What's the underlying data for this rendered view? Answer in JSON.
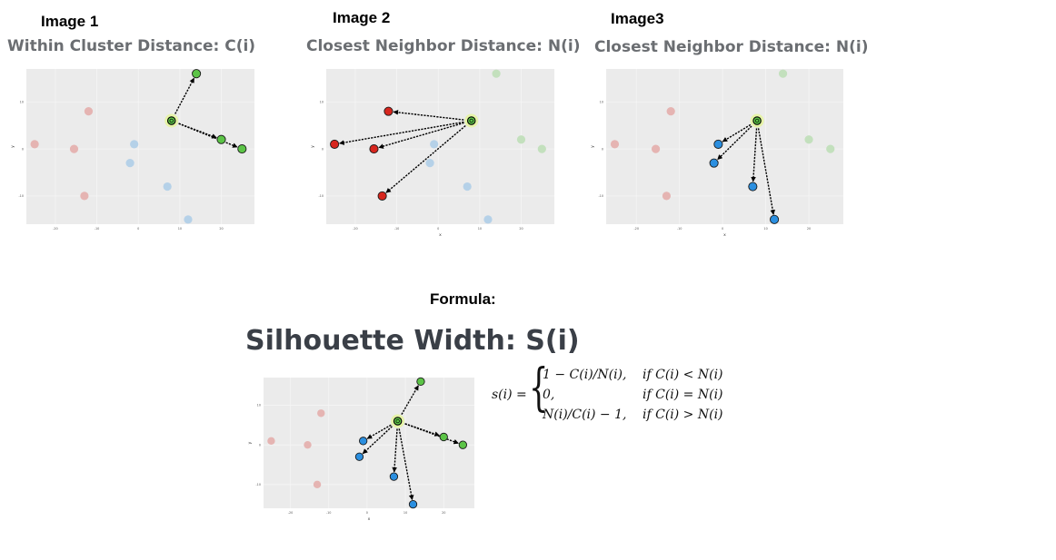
{
  "labels": {
    "image1": "Image 1",
    "image2": "Image 2",
    "image3": "Image3",
    "formula": "Formula:"
  },
  "subtitles": {
    "within": "Within Cluster Distance: C(i)",
    "neighbor2": "Closest Neighbor Distance: N(i)",
    "neighbor3": "Closest Neighbor Distance: N(i)"
  },
  "main_title": "Silhouette Width: S(i)",
  "formula": {
    "lhs": "s(i) =",
    "rows": [
      {
        "expr": "1 − C(i)/N(i),",
        "cond": "if C(i) < N(i)"
      },
      {
        "expr": "0,",
        "cond": "if C(i) = N(i)"
      },
      {
        "expr": "N(i)/C(i) − 1,",
        "cond": "if C(i) > N(i)"
      }
    ]
  },
  "colors": {
    "red": "#d7261e",
    "green": "#5cc447",
    "blue": "#2b8fe0",
    "panel": "#ebebeb",
    "focus_glow": "#e6f3a8"
  },
  "chart_data": [
    {
      "type": "scatter",
      "xlabel": "",
      "ylabel": "y",
      "x_ticks": [
        "-20",
        "-10",
        "0",
        "10",
        "20"
      ],
      "y_ticks": [
        "10",
        "0",
        "-10"
      ],
      "xlim": [
        -27,
        28
      ],
      "ylim": [
        -16,
        17
      ],
      "focus": [
        8,
        6
      ],
      "series": [
        {
          "cluster": "red",
          "points": [
            [
              -25,
              1
            ],
            [
              -15.5,
              0
            ],
            [
              -12,
              8
            ],
            [
              -13,
              -10
            ]
          ],
          "faded": true,
          "arrows": false
        },
        {
          "cluster": "blue",
          "points": [
            [
              -1,
              1
            ],
            [
              -2,
              -3
            ],
            [
              7,
              -8
            ],
            [
              12,
              -15
            ]
          ],
          "faded": true,
          "arrows": false
        },
        {
          "cluster": "green",
          "points": [
            [
              14,
              16
            ],
            [
              20,
              2
            ],
            [
              25,
              0
            ]
          ],
          "faded": false,
          "arrows": true
        }
      ]
    },
    {
      "type": "scatter",
      "xlabel": "x",
      "ylabel": "y",
      "x_ticks": [
        "-20",
        "-10",
        "0",
        "10",
        "20"
      ],
      "y_ticks": [
        "10",
        "0",
        "-10"
      ],
      "xlim": [
        -27,
        28
      ],
      "ylim": [
        -16,
        17
      ],
      "focus": [
        8,
        6
      ],
      "series": [
        {
          "cluster": "red",
          "points": [
            [
              -25,
              1
            ],
            [
              -15.5,
              0
            ],
            [
              -12,
              8
            ],
            [
              -13.5,
              -10
            ]
          ],
          "faded": false,
          "arrows": true
        },
        {
          "cluster": "blue",
          "points": [
            [
              -1,
              1
            ],
            [
              -2,
              -3
            ],
            [
              7,
              -8
            ],
            [
              12,
              -15
            ]
          ],
          "faded": true,
          "arrows": false
        },
        {
          "cluster": "green",
          "points": [
            [
              14,
              16
            ],
            [
              20,
              2
            ],
            [
              25,
              0
            ]
          ],
          "faded": true,
          "arrows": false
        }
      ]
    },
    {
      "type": "scatter",
      "xlabel": "x",
      "ylabel": "y",
      "x_ticks": [
        "-20",
        "-10",
        "0",
        "10",
        "20"
      ],
      "y_ticks": [
        "10",
        "0",
        "-10"
      ],
      "xlim": [
        -27,
        28
      ],
      "ylim": [
        -16,
        17
      ],
      "focus": [
        8,
        6
      ],
      "series": [
        {
          "cluster": "red",
          "points": [
            [
              -25,
              1
            ],
            [
              -15.5,
              0
            ],
            [
              -12,
              8
            ],
            [
              -13,
              -10
            ]
          ],
          "faded": true,
          "arrows": false
        },
        {
          "cluster": "blue",
          "points": [
            [
              -1,
              1
            ],
            [
              -2,
              -3
            ],
            [
              7,
              -8
            ],
            [
              12,
              -15
            ]
          ],
          "faded": false,
          "arrows": true
        },
        {
          "cluster": "green",
          "points": [
            [
              14,
              16
            ],
            [
              20,
              2
            ],
            [
              25,
              0
            ]
          ],
          "faded": true,
          "arrows": false
        }
      ]
    },
    {
      "type": "scatter",
      "xlabel": "x",
      "ylabel": "y",
      "x_ticks": [
        "-20",
        "-10",
        "0",
        "10",
        "20"
      ],
      "y_ticks": [
        "10",
        "0",
        "-10"
      ],
      "xlim": [
        -27,
        28
      ],
      "ylim": [
        -16,
        17
      ],
      "focus": [
        8,
        6
      ],
      "series": [
        {
          "cluster": "red",
          "points": [
            [
              -25,
              1
            ],
            [
              -15.5,
              0
            ],
            [
              -12,
              8
            ],
            [
              -13,
              -10
            ]
          ],
          "faded": true,
          "arrows": false
        },
        {
          "cluster": "blue",
          "points": [
            [
              -1,
              1
            ],
            [
              -2,
              -3
            ],
            [
              7,
              -8
            ],
            [
              12,
              -15
            ]
          ],
          "faded": false,
          "arrows": true
        },
        {
          "cluster": "green",
          "points": [
            [
              14,
              16
            ],
            [
              20,
              2
            ],
            [
              25,
              0
            ]
          ],
          "faded": false,
          "arrows": true
        }
      ]
    }
  ]
}
